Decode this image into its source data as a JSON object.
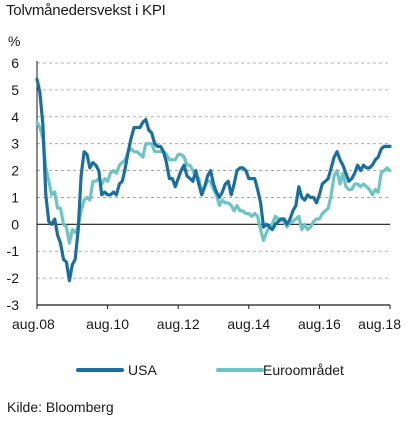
{
  "title": "Tolvmånedersvekst i KPI",
  "source": "Kilde: Bloomberg",
  "chart_data": {
    "type": "line",
    "title": "Tolvmånedersvekst i KPI",
    "ylabel": "%",
    "xlabel": "",
    "ylim": [
      -3,
      6
    ],
    "yticks": [
      6,
      5,
      4,
      3,
      2,
      1,
      0,
      -1,
      -2,
      -3
    ],
    "xrange": [
      "2008-08",
      "2018-08"
    ],
    "xtick_labels": [
      "aug.08",
      "aug.10",
      "aug.12",
      "aug.14",
      "aug.16",
      "aug.18"
    ],
    "grid": "horizontal dashed",
    "legend_position": "bottom",
    "series": [
      {
        "name": "USA",
        "color": "#1a6fa0",
        "points": [
          [
            "2008-08",
            5.4
          ],
          [
            "2008-09",
            4.9
          ],
          [
            "2008-10",
            3.7
          ],
          [
            "2008-11",
            1.1
          ],
          [
            "2008-12",
            0.1
          ],
          [
            "2009-01",
            0.0
          ],
          [
            "2009-02",
            0.2
          ],
          [
            "2009-03",
            -0.4
          ],
          [
            "2009-04",
            -0.7
          ],
          [
            "2009-05",
            -1.3
          ],
          [
            "2009-06",
            -1.4
          ],
          [
            "2009-07",
            -2.1
          ],
          [
            "2009-08",
            -1.5
          ],
          [
            "2009-09",
            -1.3
          ],
          [
            "2009-10",
            -0.2
          ],
          [
            "2009-11",
            1.8
          ],
          [
            "2009-12",
            2.7
          ],
          [
            "2010-01",
            2.6
          ],
          [
            "2010-02",
            2.1
          ],
          [
            "2010-03",
            2.3
          ],
          [
            "2010-04",
            2.2
          ],
          [
            "2010-05",
            2.0
          ],
          [
            "2010-06",
            1.1
          ],
          [
            "2010-07",
            1.2
          ],
          [
            "2010-08",
            1.1
          ],
          [
            "2010-09",
            1.1
          ],
          [
            "2010-10",
            1.2
          ],
          [
            "2010-11",
            1.1
          ],
          [
            "2010-12",
            1.5
          ],
          [
            "2011-01",
            1.6
          ],
          [
            "2011-02",
            2.1
          ],
          [
            "2011-03",
            2.7
          ],
          [
            "2011-04",
            3.2
          ],
          [
            "2011-05",
            3.6
          ],
          [
            "2011-06",
            3.6
          ],
          [
            "2011-07",
            3.6
          ],
          [
            "2011-08",
            3.8
          ],
          [
            "2011-09",
            3.9
          ],
          [
            "2011-10",
            3.5
          ],
          [
            "2011-11",
            3.4
          ],
          [
            "2011-12",
            3.0
          ],
          [
            "2012-01",
            2.9
          ],
          [
            "2012-02",
            2.9
          ],
          [
            "2012-03",
            2.7
          ],
          [
            "2012-04",
            2.3
          ],
          [
            "2012-05",
            1.7
          ],
          [
            "2012-06",
            1.7
          ],
          [
            "2012-07",
            1.4
          ],
          [
            "2012-08",
            1.7
          ],
          [
            "2012-09",
            2.0
          ],
          [
            "2012-10",
            2.2
          ],
          [
            "2012-11",
            1.8
          ],
          [
            "2012-12",
            1.7
          ],
          [
            "2013-01",
            1.6
          ],
          [
            "2013-02",
            2.0
          ],
          [
            "2013-03",
            1.5
          ],
          [
            "2013-04",
            1.1
          ],
          [
            "2013-05",
            1.4
          ],
          [
            "2013-06",
            1.8
          ],
          [
            "2013-07",
            2.0
          ],
          [
            "2013-08",
            1.5
          ],
          [
            "2013-09",
            1.2
          ],
          [
            "2013-10",
            1.0
          ],
          [
            "2013-11",
            1.2
          ],
          [
            "2013-12",
            1.5
          ],
          [
            "2014-01",
            1.6
          ],
          [
            "2014-02",
            1.1
          ],
          [
            "2014-03",
            1.5
          ],
          [
            "2014-04",
            2.0
          ],
          [
            "2014-05",
            2.1
          ],
          [
            "2014-06",
            2.1
          ],
          [
            "2014-07",
            2.0
          ],
          [
            "2014-08",
            1.7
          ],
          [
            "2014-09",
            1.7
          ],
          [
            "2014-10",
            1.7
          ],
          [
            "2014-11",
            1.3
          ],
          [
            "2014-12",
            0.8
          ],
          [
            "2015-01",
            -0.1
          ],
          [
            "2015-02",
            0.0
          ],
          [
            "2015-03",
            -0.1
          ],
          [
            "2015-04",
            -0.2
          ],
          [
            "2015-05",
            0.0
          ],
          [
            "2015-06",
            0.1
          ],
          [
            "2015-07",
            0.2
          ],
          [
            "2015-08",
            0.2
          ],
          [
            "2015-09",
            0.0
          ],
          [
            "2015-10",
            0.2
          ],
          [
            "2015-11",
            0.5
          ],
          [
            "2015-12",
            0.7
          ],
          [
            "2016-01",
            1.4
          ],
          [
            "2016-02",
            1.0
          ],
          [
            "2016-03",
            0.9
          ],
          [
            "2016-04",
            1.1
          ],
          [
            "2016-05",
            1.0
          ],
          [
            "2016-06",
            1.0
          ],
          [
            "2016-07",
            0.8
          ],
          [
            "2016-08",
            1.1
          ],
          [
            "2016-09",
            1.5
          ],
          [
            "2016-10",
            1.6
          ],
          [
            "2016-11",
            1.7
          ],
          [
            "2016-12",
            2.1
          ],
          [
            "2017-01",
            2.5
          ],
          [
            "2017-02",
            2.7
          ],
          [
            "2017-03",
            2.4
          ],
          [
            "2017-04",
            2.2
          ],
          [
            "2017-05",
            1.9
          ],
          [
            "2017-06",
            1.6
          ],
          [
            "2017-07",
            1.7
          ],
          [
            "2017-08",
            1.9
          ],
          [
            "2017-09",
            2.2
          ],
          [
            "2017-10",
            2.0
          ],
          [
            "2017-11",
            2.2
          ],
          [
            "2017-12",
            2.1
          ],
          [
            "2018-01",
            2.1
          ],
          [
            "2018-02",
            2.2
          ],
          [
            "2018-03",
            2.4
          ],
          [
            "2018-04",
            2.5
          ],
          [
            "2018-05",
            2.8
          ],
          [
            "2018-06",
            2.9
          ],
          [
            "2018-07",
            2.9
          ],
          [
            "2018-08",
            2.9
          ]
        ]
      },
      {
        "name": "Euroområdet",
        "color": "#6cc5c3",
        "points": [
          [
            "2008-08",
            3.8
          ],
          [
            "2008-09",
            3.6
          ],
          [
            "2008-10",
            3.2
          ],
          [
            "2008-11",
            2.1
          ],
          [
            "2008-12",
            1.6
          ],
          [
            "2009-01",
            1.1
          ],
          [
            "2009-02",
            1.2
          ],
          [
            "2009-03",
            0.6
          ],
          [
            "2009-04",
            0.6
          ],
          [
            "2009-05",
            0.0
          ],
          [
            "2009-06",
            -0.1
          ],
          [
            "2009-07",
            -0.7
          ],
          [
            "2009-08",
            -0.2
          ],
          [
            "2009-09",
            -0.3
          ],
          [
            "2009-10",
            -0.1
          ],
          [
            "2009-11",
            0.5
          ],
          [
            "2009-12",
            0.9
          ],
          [
            "2010-01",
            1.0
          ],
          [
            "2010-02",
            0.9
          ],
          [
            "2010-03",
            1.6
          ],
          [
            "2010-04",
            1.6
          ],
          [
            "2010-05",
            1.7
          ],
          [
            "2010-06",
            1.5
          ],
          [
            "2010-07",
            1.7
          ],
          [
            "2010-08",
            1.6
          ],
          [
            "2010-09",
            1.9
          ],
          [
            "2010-10",
            2.0
          ],
          [
            "2010-11",
            1.9
          ],
          [
            "2010-12",
            2.2
          ],
          [
            "2011-01",
            2.3
          ],
          [
            "2011-02",
            2.4
          ],
          [
            "2011-03",
            2.7
          ],
          [
            "2011-04",
            2.8
          ],
          [
            "2011-05",
            2.7
          ],
          [
            "2011-06",
            2.7
          ],
          [
            "2011-07",
            2.6
          ],
          [
            "2011-08",
            2.5
          ],
          [
            "2011-09",
            3.0
          ],
          [
            "2011-10",
            3.0
          ],
          [
            "2011-11",
            3.0
          ],
          [
            "2011-12",
            2.7
          ],
          [
            "2012-01",
            2.7
          ],
          [
            "2012-02",
            2.7
          ],
          [
            "2012-03",
            2.7
          ],
          [
            "2012-04",
            2.6
          ],
          [
            "2012-05",
            2.4
          ],
          [
            "2012-06",
            2.4
          ],
          [
            "2012-07",
            2.4
          ],
          [
            "2012-08",
            2.6
          ],
          [
            "2012-09",
            2.6
          ],
          [
            "2012-10",
            2.5
          ],
          [
            "2012-11",
            2.2
          ],
          [
            "2012-12",
            2.2
          ],
          [
            "2013-01",
            2.0
          ],
          [
            "2013-02",
            1.8
          ],
          [
            "2013-03",
            1.7
          ],
          [
            "2013-04",
            1.2
          ],
          [
            "2013-05",
            1.4
          ],
          [
            "2013-06",
            1.6
          ],
          [
            "2013-07",
            1.6
          ],
          [
            "2013-08",
            1.3
          ],
          [
            "2013-09",
            1.1
          ],
          [
            "2013-10",
            0.7
          ],
          [
            "2013-11",
            0.9
          ],
          [
            "2013-12",
            0.8
          ],
          [
            "2014-01",
            0.8
          ],
          [
            "2014-02",
            0.7
          ],
          [
            "2014-03",
            0.5
          ],
          [
            "2014-04",
            0.7
          ],
          [
            "2014-05",
            0.5
          ],
          [
            "2014-06",
            0.5
          ],
          [
            "2014-07",
            0.4
          ],
          [
            "2014-08",
            0.4
          ],
          [
            "2014-09",
            0.3
          ],
          [
            "2014-10",
            0.4
          ],
          [
            "2014-11",
            0.3
          ],
          [
            "2014-12",
            -0.2
          ],
          [
            "2015-01",
            -0.6
          ],
          [
            "2015-02",
            -0.3
          ],
          [
            "2015-03",
            -0.1
          ],
          [
            "2015-04",
            0.0
          ],
          [
            "2015-05",
            0.3
          ],
          [
            "2015-06",
            0.2
          ],
          [
            "2015-07",
            0.2
          ],
          [
            "2015-08",
            0.1
          ],
          [
            "2015-09",
            -0.1
          ],
          [
            "2015-10",
            0.1
          ],
          [
            "2015-11",
            0.1
          ],
          [
            "2015-12",
            0.2
          ],
          [
            "2016-01",
            0.3
          ],
          [
            "2016-02",
            -0.2
          ],
          [
            "2016-03",
            0.0
          ],
          [
            "2016-04",
            -0.2
          ],
          [
            "2016-05",
            -0.1
          ],
          [
            "2016-06",
            0.1
          ],
          [
            "2016-07",
            0.2
          ],
          [
            "2016-08",
            0.2
          ],
          [
            "2016-09",
            0.4
          ],
          [
            "2016-10",
            0.5
          ],
          [
            "2016-11",
            0.6
          ],
          [
            "2016-12",
            1.1
          ],
          [
            "2017-01",
            1.8
          ],
          [
            "2017-02",
            2.0
          ],
          [
            "2017-03",
            1.5
          ],
          [
            "2017-04",
            1.9
          ],
          [
            "2017-05",
            1.4
          ],
          [
            "2017-06",
            1.3
          ],
          [
            "2017-07",
            1.3
          ],
          [
            "2017-08",
            1.5
          ],
          [
            "2017-09",
            1.5
          ],
          [
            "2017-10",
            1.4
          ],
          [
            "2017-11",
            1.5
          ],
          [
            "2017-12",
            1.4
          ],
          [
            "2018-01",
            1.3
          ],
          [
            "2018-02",
            1.1
          ],
          [
            "2018-03",
            1.3
          ],
          [
            "2018-04",
            1.2
          ],
          [
            "2018-05",
            1.9
          ],
          [
            "2018-06",
            2.0
          ],
          [
            "2018-07",
            2.1
          ],
          [
            "2018-08",
            2.0
          ]
        ]
      }
    ]
  }
}
